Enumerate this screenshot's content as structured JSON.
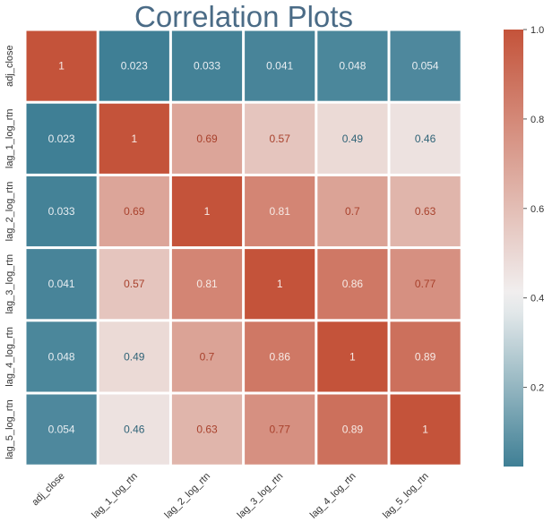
{
  "chart_data": {
    "type": "heatmap",
    "title": "Correlation Plots",
    "x_labels": [
      "adj_close",
      "lag_1_log_rtn",
      "lag_2_log_rtn",
      "lag_3_log_rtn",
      "lag_4_log_rtn",
      "lag_5_log_rtn"
    ],
    "y_labels": [
      "adj_close",
      "lag_1_log_rtn",
      "lag_2_log_rtn",
      "lag_3_log_rtn",
      "lag_4_log_rtn",
      "lag_5_log_rtn"
    ],
    "values": [
      [
        1,
        0.023,
        0.033,
        0.041,
        0.048,
        0.054
      ],
      [
        0.023,
        1,
        0.69,
        0.57,
        0.49,
        0.46
      ],
      [
        0.033,
        0.69,
        1,
        0.81,
        0.7,
        0.63
      ],
      [
        0.041,
        0.57,
        0.81,
        1,
        0.86,
        0.77
      ],
      [
        0.048,
        0.49,
        0.7,
        0.86,
        1,
        0.89
      ],
      [
        0.054,
        0.46,
        0.63,
        0.77,
        0.89,
        1
      ]
    ],
    "value_labels": [
      [
        "1",
        "0.023",
        "0.033",
        "0.041",
        "0.048",
        "0.054"
      ],
      [
        "0.023",
        "1",
        "0.69",
        "0.57",
        "0.49",
        "0.46"
      ],
      [
        "0.033",
        "0.69",
        "1",
        "0.81",
        "0.7",
        "0.63"
      ],
      [
        "0.041",
        "0.57",
        "0.81",
        "1",
        "0.86",
        "0.77"
      ],
      [
        "0.048",
        "0.49",
        "0.7",
        "0.86",
        "1",
        "0.89"
      ],
      [
        "0.054",
        "0.46",
        "0.63",
        "0.77",
        "0.89",
        "1"
      ]
    ],
    "colorbar": {
      "range": [
        0.023,
        1.0
      ],
      "ticks": [
        0.2,
        0.4,
        0.6,
        0.8,
        1.0
      ],
      "tick_labels": [
        "0.2",
        "0.4",
        "0.6",
        "0.8",
        "1.0"
      ],
      "position": "right"
    },
    "colormap": {
      "low": "#3f7f95",
      "mid": "#f2f2f2",
      "high": "#c4533a",
      "mid_value": 0.4
    }
  }
}
